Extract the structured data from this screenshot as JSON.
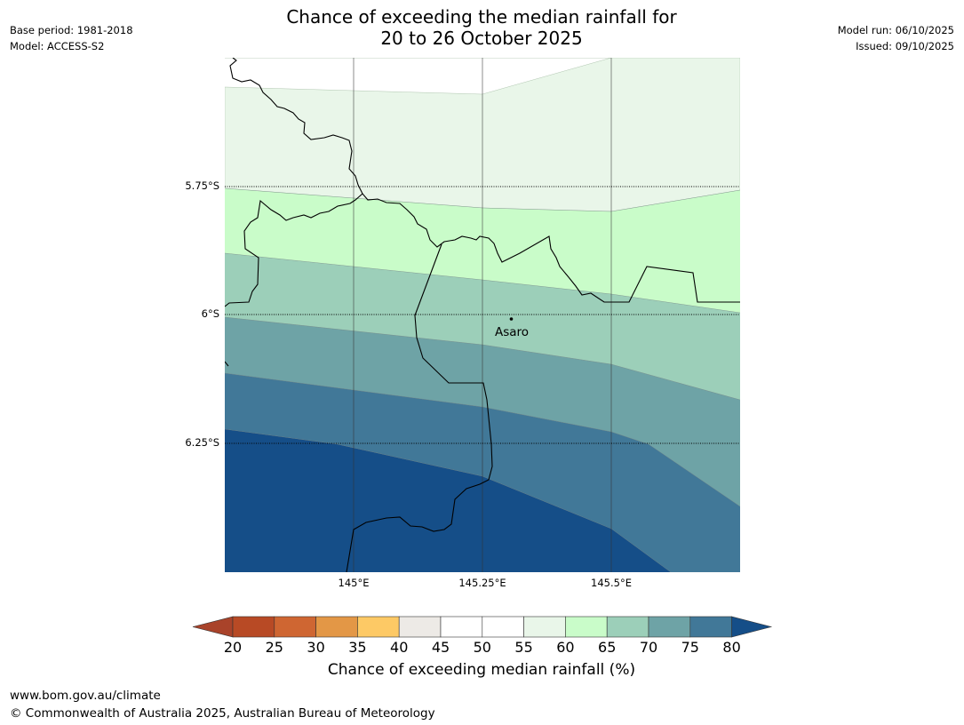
{
  "title": {
    "line1": "Chance of exceeding the median rainfall for",
    "line2": "20 to 26 October 2025"
  },
  "meta_left": {
    "base_period": "Base period: 1981-2018",
    "model": "Model: ACCESS-S2"
  },
  "meta_right": {
    "model_run": "Model run: 06/10/2025",
    "issued": "Issued: 09/10/2025"
  },
  "map": {
    "lat_labels": [
      "5.75°S",
      "6°S",
      "6.25°S"
    ],
    "lon_labels": [
      "145°E",
      "145.25°E",
      "145.5°E"
    ],
    "place": {
      "name": "Asaro",
      "lat": -6.01,
      "lon": 145.3
    }
  },
  "colorbar": {
    "label": "Chance of exceeding median rainfall (%)",
    "ticks": [
      "20",
      "25",
      "30",
      "35",
      "40",
      "45",
      "50",
      "55",
      "60",
      "65",
      "70",
      "75",
      "80"
    ],
    "colors": [
      "#a9432a",
      "#b84a25",
      "#cf6632",
      "#e39746",
      "#fdc965",
      "#edeae6",
      "#ffffff",
      "#ffffff",
      "#e9f6e9",
      "#c9fcc9",
      "#9ccfb9",
      "#6ea3a6",
      "#417898",
      "#154e88"
    ]
  },
  "footer": {
    "url": "www.bom.gov.au/climate",
    "copyright": "© Commonwealth of Australia 2025, Australian Bureau of Meteorology"
  }
}
